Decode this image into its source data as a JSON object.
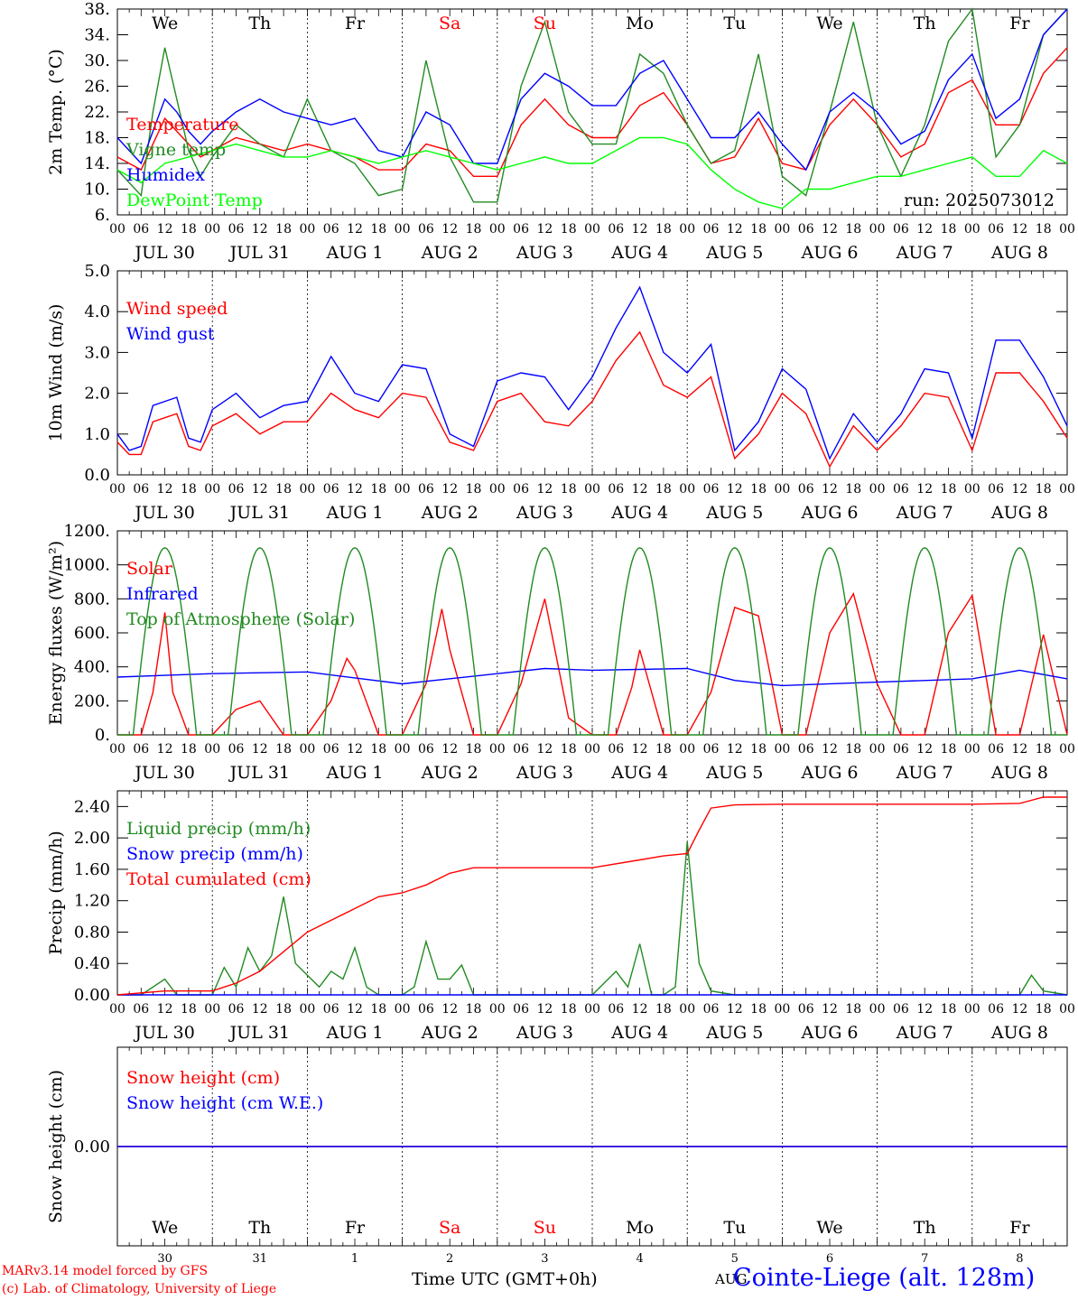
{
  "run_label": "run: 2025073012",
  "hour_ticks": [
    "00",
    "06",
    "12",
    "18"
  ],
  "final_hour": "00",
  "date_labels": [
    "JUL 30",
    "JUL 31",
    "AUG  1",
    "AUG  2",
    "AUG  3",
    "AUG  4",
    "AUG  5",
    "AUG  6",
    "AUG  7",
    "AUG  8"
  ],
  "weekdays": [
    {
      "label": "We",
      "color": "#000000"
    },
    {
      "label": "Th",
      "color": "#000000"
    },
    {
      "label": "Fr",
      "color": "#000000"
    },
    {
      "label": "Sa",
      "color": "#ff0000"
    },
    {
      "label": "Su",
      "color": "#ff0000"
    },
    {
      "label": "Mo",
      "color": "#000000"
    },
    {
      "label": "Tu",
      "color": "#000000"
    },
    {
      "label": "We",
      "color": "#000000"
    },
    {
      "label": "Th",
      "color": "#000000"
    },
    {
      "label": "Fr",
      "color": "#000000"
    }
  ],
  "day_numbers": [
    "30",
    "31",
    "1",
    "2",
    "3",
    "4",
    "5",
    "6",
    "7",
    "8"
  ],
  "footer": {
    "model": "MARv3.14 model forced by GFS",
    "lab": "(c) Lab. of Climatology, University of Liege",
    "xlabel": "Time UTC (GMT+0h)",
    "month": "AUG",
    "station": "Cointe-Liege (alt. 128m)"
  },
  "colors": {
    "red": "#ff0000",
    "darkgreen": "#228b22",
    "blue": "#0000ff",
    "lightgreen": "#00ff00"
  },
  "chart_data": [
    {
      "type": "line",
      "ylabel": "2m Temp. (°C)",
      "ylim": [
        6,
        38
      ],
      "yticks": [
        "6.",
        "10.",
        "14.",
        "18.",
        "22.",
        "26.",
        "30.",
        "34.",
        "38."
      ],
      "x_unit": "hours since JUL 30 00 UTC",
      "series": [
        {
          "name": "Temperature",
          "color": "#ff0000",
          "x": [
            0,
            6,
            9,
            12,
            15,
            18,
            21,
            24,
            30,
            36,
            42,
            48,
            54,
            60,
            66,
            72,
            78,
            84,
            90,
            96,
            102,
            108,
            114,
            120,
            126,
            132,
            138,
            144,
            150,
            156,
            162,
            168,
            174,
            180,
            186,
            192,
            198,
            204,
            210,
            216,
            222,
            228,
            234,
            240
          ],
          "y": [
            15,
            13,
            17,
            21,
            19,
            17,
            15,
            16,
            18,
            17,
            16,
            17,
            16,
            15,
            13,
            13,
            17,
            16,
            12,
            12,
            20,
            24,
            20,
            18,
            18,
            23,
            25,
            20,
            14,
            15,
            21,
            14,
            13,
            20,
            24,
            20,
            15,
            17,
            25,
            27,
            20,
            20,
            28,
            32
          ]
        },
        {
          "name": "Vigne temp",
          "color": "#228b22",
          "x": [
            0,
            6,
            9,
            12,
            15,
            18,
            21,
            24,
            30,
            36,
            42,
            48,
            54,
            60,
            66,
            72,
            78,
            84,
            90,
            96,
            102,
            108,
            114,
            120,
            126,
            132,
            138,
            144,
            150,
            156,
            162,
            168,
            174,
            180,
            186,
            192,
            198,
            204,
            210,
            216,
            222,
            228,
            234,
            240
          ],
          "y": [
            13,
            9,
            22,
            32,
            24,
            16,
            12,
            15,
            20,
            17,
            15,
            24,
            16,
            14,
            9,
            10,
            30,
            15,
            8,
            8,
            26,
            36,
            22,
            17,
            17,
            31,
            28,
            20,
            14,
            16,
            31,
            12,
            9,
            22,
            36,
            20,
            12,
            20,
            33,
            38,
            15,
            20,
            34,
            38
          ]
        },
        {
          "name": "Humidex",
          "color": "#0000ff",
          "x": [
            0,
            6,
            9,
            12,
            15,
            18,
            21,
            24,
            30,
            36,
            42,
            48,
            54,
            60,
            66,
            72,
            78,
            84,
            90,
            96,
            102,
            108,
            114,
            120,
            126,
            132,
            138,
            144,
            150,
            156,
            162,
            168,
            174,
            180,
            186,
            192,
            198,
            204,
            210,
            216,
            222,
            228,
            234,
            240
          ],
          "y": [
            18,
            14,
            19,
            24,
            22,
            19,
            17,
            19,
            22,
            24,
            22,
            21,
            20,
            21,
            16,
            15,
            22,
            20,
            14,
            14,
            24,
            28,
            26,
            23,
            23,
            28,
            30,
            24,
            18,
            18,
            22,
            17,
            13,
            22,
            25,
            22,
            17,
            19,
            27,
            31,
            21,
            24,
            34,
            38
          ]
        },
        {
          "name": "DewPoint Temp",
          "color": "#00ff00",
          "x": [
            0,
            6,
            12,
            18,
            24,
            30,
            36,
            42,
            48,
            54,
            60,
            66,
            72,
            78,
            84,
            90,
            96,
            102,
            108,
            114,
            120,
            126,
            132,
            138,
            144,
            150,
            156,
            162,
            168,
            174,
            180,
            186,
            192,
            198,
            204,
            210,
            216,
            222,
            228,
            234,
            240
          ],
          "y": [
            13,
            11,
            14,
            15,
            16,
            17,
            16,
            15,
            15,
            16,
            15,
            14,
            15,
            16,
            15,
            14,
            13,
            14,
            15,
            14,
            14,
            16,
            18,
            18,
            17,
            13,
            10,
            8,
            7,
            10,
            10,
            11,
            12,
            12,
            13,
            14,
            15,
            12,
            12,
            16,
            14
          ]
        }
      ]
    },
    {
      "type": "line",
      "ylabel": "10m Wind (m/s)",
      "ylim": [
        0,
        5
      ],
      "yticks": [
        "0.0",
        "1.0",
        "2.0",
        "3.0",
        "4.0",
        "5.0"
      ],
      "series": [
        {
          "name": "Wind speed",
          "color": "#ff0000",
          "x": [
            0,
            3,
            6,
            9,
            12,
            15,
            18,
            21,
            24,
            30,
            36,
            42,
            48,
            54,
            60,
            66,
            72,
            78,
            84,
            90,
            96,
            102,
            108,
            114,
            120,
            126,
            132,
            138,
            144,
            150,
            156,
            162,
            168,
            174,
            180,
            186,
            192,
            198,
            204,
            210,
            216,
            222,
            228,
            234,
            240
          ],
          "y": [
            0.8,
            0.5,
            0.5,
            1.3,
            1.4,
            1.5,
            0.7,
            0.6,
            1.2,
            1.5,
            1.0,
            1.3,
            1.3,
            2.0,
            1.6,
            1.4,
            2.0,
            1.9,
            0.8,
            0.6,
            1.8,
            2.0,
            1.3,
            1.2,
            1.8,
            2.8,
            3.5,
            2.2,
            1.9,
            2.4,
            0.4,
            1.0,
            2.0,
            1.5,
            0.2,
            1.2,
            0.6,
            1.2,
            2.0,
            1.9,
            0.6,
            2.5,
            2.5,
            1.8,
            0.9
          ]
        },
        {
          "name": "Wind gust",
          "color": "#0000ff",
          "x": [
            0,
            3,
            6,
            9,
            12,
            15,
            18,
            21,
            24,
            30,
            36,
            42,
            48,
            54,
            60,
            66,
            72,
            78,
            84,
            90,
            96,
            102,
            108,
            114,
            120,
            126,
            132,
            138,
            144,
            150,
            156,
            162,
            168,
            174,
            180,
            186,
            192,
            198,
            204,
            210,
            216,
            222,
            228,
            234,
            240
          ],
          "y": [
            1.0,
            0.6,
            0.7,
            1.7,
            1.8,
            1.9,
            0.9,
            0.8,
            1.6,
            2.0,
            1.4,
            1.7,
            1.8,
            2.9,
            2.0,
            1.8,
            2.7,
            2.6,
            1.0,
            0.7,
            2.3,
            2.5,
            2.4,
            1.6,
            2.4,
            3.6,
            4.6,
            3.0,
            2.5,
            3.2,
            0.6,
            1.3,
            2.6,
            2.1,
            0.4,
            1.5,
            0.8,
            1.5,
            2.6,
            2.5,
            0.9,
            3.3,
            3.3,
            2.4,
            1.2
          ]
        }
      ]
    },
    {
      "type": "line",
      "ylabel": "Energy fluxes (W/m²)",
      "ylim": [
        0,
        1200
      ],
      "yticks": [
        "0.",
        "200.",
        "400.",
        "600.",
        "800.",
        "1000.",
        "1200."
      ],
      "series": [
        {
          "name": "Solar",
          "color": "#ff0000",
          "x": [
            0,
            6,
            9,
            12,
            14,
            18,
            24,
            30,
            36,
            42,
            48,
            54,
            58,
            60,
            66,
            72,
            78,
            82,
            84,
            90,
            96,
            102,
            108,
            114,
            120,
            126,
            130,
            132,
            138,
            144,
            150,
            156,
            162,
            168,
            174,
            180,
            186,
            192,
            198,
            204,
            210,
            216,
            222,
            228,
            234,
            240
          ],
          "y": [
            0,
            0,
            250,
            720,
            250,
            0,
            0,
            150,
            200,
            0,
            0,
            200,
            450,
            380,
            0,
            0,
            300,
            740,
            500,
            0,
            0,
            300,
            800,
            100,
            0,
            0,
            280,
            500,
            0,
            0,
            250,
            750,
            700,
            0,
            0,
            600,
            830,
            300,
            0,
            0,
            600,
            820,
            0,
            0,
            590,
            0
          ]
        },
        {
          "name": "Infrared",
          "color": "#0000ff",
          "x": [
            0,
            12,
            24,
            48,
            72,
            96,
            108,
            120,
            144,
            156,
            168,
            192,
            216,
            228,
            240
          ],
          "y": [
            340,
            350,
            360,
            370,
            300,
            360,
            390,
            380,
            390,
            320,
            290,
            310,
            330,
            380,
            330
          ]
        },
        {
          "name": "Top of Atmosphere (Solar)",
          "color": "#228b22",
          "shape": "daily-peak",
          "peak": 1100,
          "sunrise": 4,
          "sunset": 20
        }
      ]
    },
    {
      "type": "line",
      "ylabel": "Precip (mm/h)",
      "ylim": [
        0,
        2.6
      ],
      "yticks": [
        "0.00",
        "0.40",
        "0.80",
        "1.20",
        "1.60",
        "2.00",
        "2.40"
      ],
      "series": [
        {
          "name": "Liquid precip (mm/h)",
          "color": "#228b22",
          "x": [
            0,
            6,
            12,
            15,
            18,
            24,
            27,
            30,
            33,
            36,
            39,
            42,
            45,
            48,
            51,
            54,
            57,
            60,
            63,
            66,
            72,
            75,
            78,
            81,
            84,
            87,
            90,
            96,
            108,
            120,
            126,
            129,
            132,
            135,
            138,
            141,
            144,
            147,
            150,
            156,
            216,
            222,
            228,
            231,
            234,
            240
          ],
          "y": [
            0,
            0,
            0.2,
            0,
            0,
            0,
            0.35,
            0.1,
            0.6,
            0.3,
            0.5,
            1.25,
            0.4,
            0.25,
            0.1,
            0.3,
            0.2,
            0.6,
            0.1,
            0,
            0,
            0.1,
            0.68,
            0.2,
            0.2,
            0.38,
            0,
            0,
            0,
            0,
            0.3,
            0.1,
            0.65,
            0,
            0,
            0.1,
            1.95,
            0.4,
            0.05,
            0,
            0,
            0,
            0,
            0.25,
            0.05,
            0
          ]
        },
        {
          "name": "Snow precip (mm/h)",
          "color": "#0000ff",
          "x": [
            0,
            240
          ],
          "y": [
            0,
            0
          ]
        },
        {
          "name": "Total cumulated (cm)",
          "color": "#ff0000",
          "x": [
            0,
            12,
            24,
            30,
            36,
            42,
            48,
            54,
            60,
            66,
            72,
            78,
            84,
            90,
            96,
            120,
            132,
            138,
            144,
            147,
            150,
            156,
            168,
            192,
            216,
            228,
            234,
            240
          ],
          "y": [
            0,
            0.05,
            0.05,
            0.15,
            0.3,
            0.55,
            0.8,
            0.95,
            1.1,
            1.25,
            1.3,
            1.4,
            1.55,
            1.62,
            1.62,
            1.62,
            1.72,
            1.77,
            1.8,
            2.1,
            2.38,
            2.42,
            2.43,
            2.43,
            2.43,
            2.44,
            2.52,
            2.52
          ]
        }
      ]
    },
    {
      "type": "line",
      "ylabel": "Snow height (cm)",
      "yticks": [
        "0.00"
      ],
      "series": [
        {
          "name": "Snow height (cm)",
          "color": "#ff0000",
          "x": [
            0,
            240
          ],
          "y": [
            0,
            0
          ]
        },
        {
          "name": "Snow height (cm W.E.)",
          "color": "#0000ff",
          "x": [
            0,
            240
          ],
          "y": [
            0,
            0
          ]
        }
      ]
    }
  ]
}
